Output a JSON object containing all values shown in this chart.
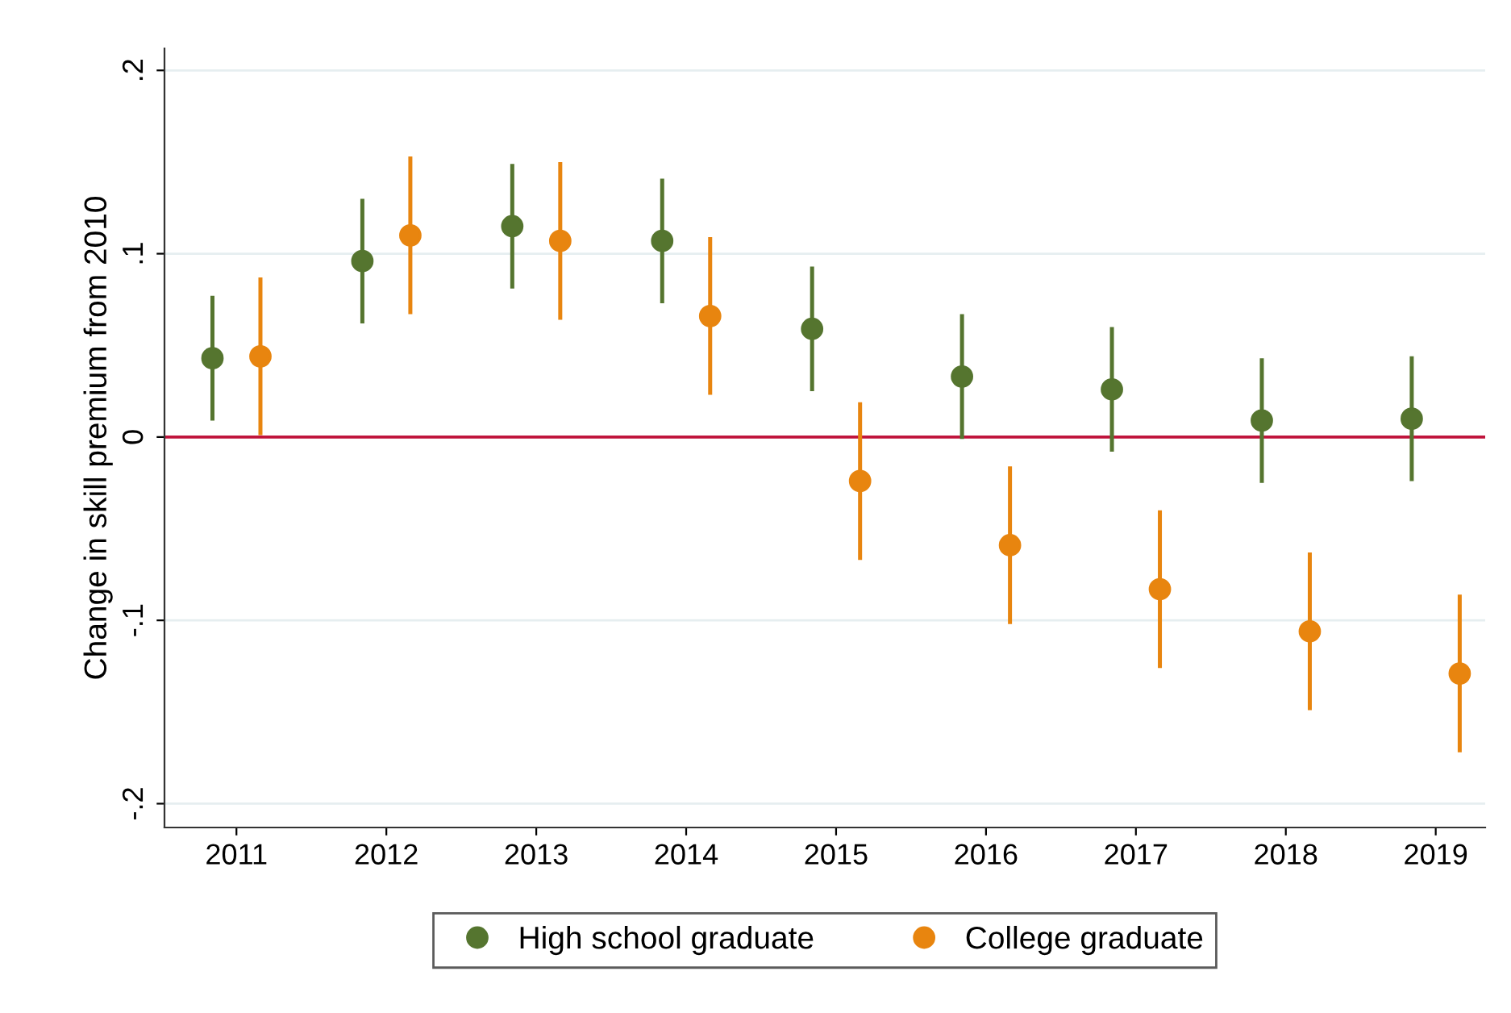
{
  "chart_data": {
    "type": "scatter",
    "ylabel": "Change in skill premium from 2010",
    "categories": [
      "2011",
      "2012",
      "2013",
      "2014",
      "2015",
      "2016",
      "2017",
      "2018",
      "2019"
    ],
    "series": [
      {
        "name": "High school graduate",
        "color": "#55752f",
        "values": [
          0.043,
          0.096,
          0.115,
          0.107,
          0.059,
          0.033,
          0.026,
          0.009,
          0.01
        ],
        "errors": [
          0.034,
          0.034,
          0.034,
          0.034,
          0.034,
          0.034,
          0.034,
          0.034,
          0.034
        ]
      },
      {
        "name": "College graduate",
        "color": "#e8850f",
        "values": [
          0.044,
          0.11,
          0.107,
          0.066,
          -0.024,
          -0.059,
          -0.083,
          -0.106,
          -0.129
        ],
        "errors": [
          0.043,
          0.043,
          0.043,
          0.043,
          0.043,
          0.043,
          0.043,
          0.043,
          0.043
        ]
      }
    ],
    "ylim": [
      -0.213,
      0.212
    ],
    "yticks": [
      {
        "value": -0.2,
        "label": "-.2"
      },
      {
        "value": -0.1,
        "label": "-.1"
      },
      0,
      {
        "value": 0.1,
        "label": ".1"
      },
      {
        "value": 0.2,
        "label": ".2"
      }
    ],
    "ref_lines": [
      {
        "axis": "y",
        "value": 0,
        "color": "#c0143c"
      }
    ],
    "grid": "y",
    "legend": "bottom",
    "marker": "circle"
  }
}
